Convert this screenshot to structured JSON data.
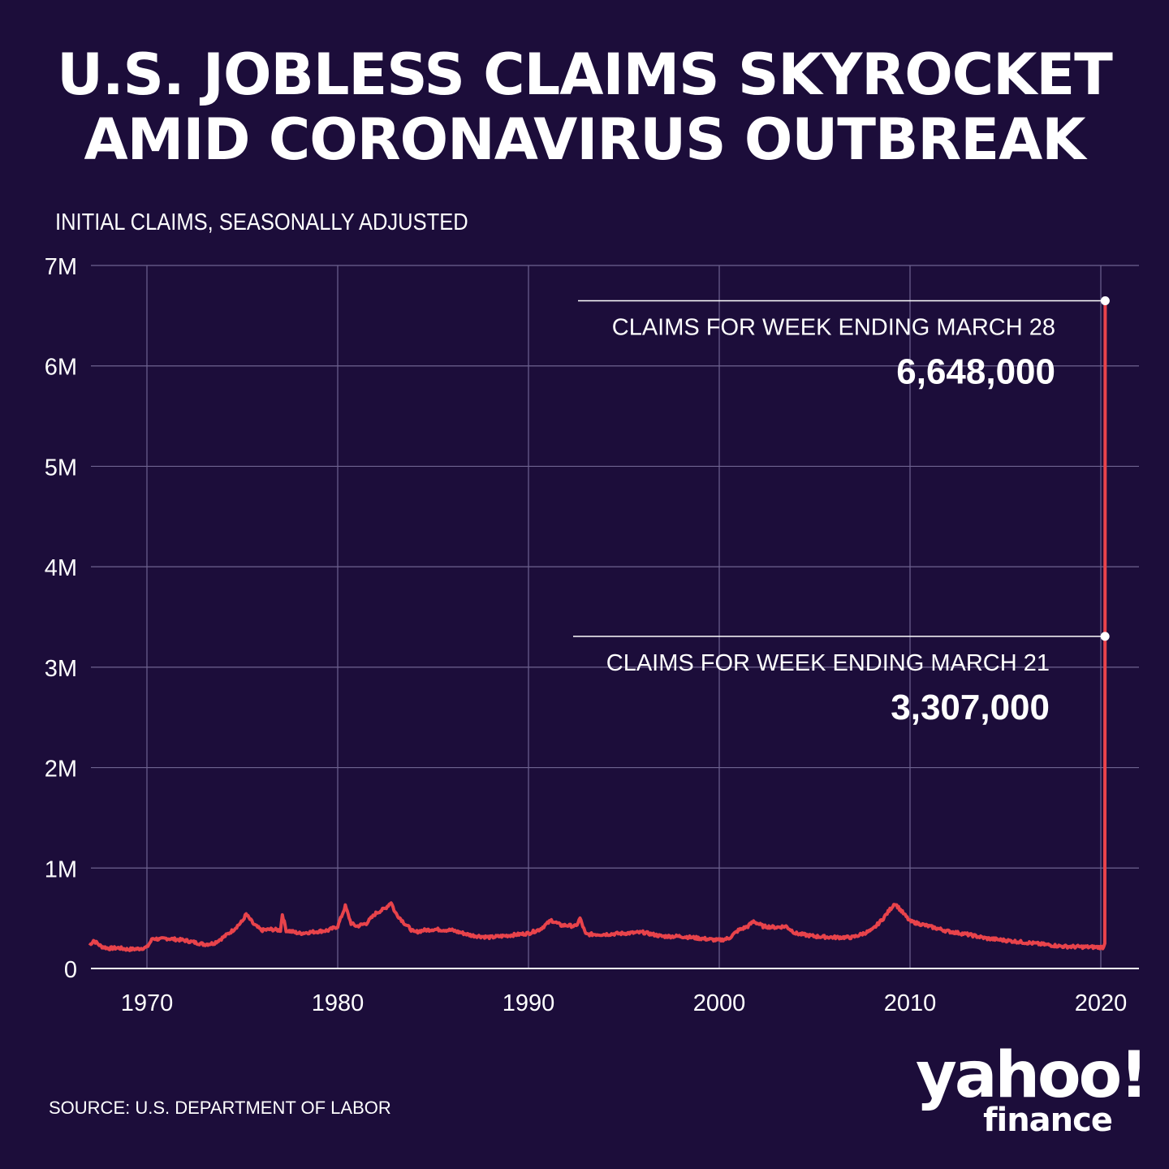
{
  "chart_data": {
    "type": "line",
    "title": "U.S. JOBLESS CLAIMS SKYROCKET AMID CORONAVIRUS OUTBREAK",
    "title_lines": [
      "U.S. JOBLESS CLAIMS SKYROCKET",
      "AMID CORONAVIRUS OUTBREAK"
    ],
    "ylabel": "INITIAL CLAIMS, SEASONALLY ADJUSTED",
    "xlim": [
      1967,
      2021.0
    ],
    "ylim": [
      0,
      7000000
    ],
    "grid": true,
    "y_ticks": [
      {
        "v": 0,
        "label": "0"
      },
      {
        "v": 1000000,
        "label": "1M"
      },
      {
        "v": 2000000,
        "label": "2M"
      },
      {
        "v": 3000000,
        "label": "3M"
      },
      {
        "v": 4000000,
        "label": "4M"
      },
      {
        "v": 5000000,
        "label": "5M"
      },
      {
        "v": 6000000,
        "label": "6M"
      },
      {
        "v": 7000000,
        "label": "7M"
      }
    ],
    "x_ticks": [
      {
        "v": 1970,
        "label": "1970"
      },
      {
        "v": 1980,
        "label": "1980"
      },
      {
        "v": 1990,
        "label": "1990"
      },
      {
        "v": 2000,
        "label": "2000"
      },
      {
        "v": 2010,
        "label": "2010"
      },
      {
        "v": 2020,
        "label": "2020"
      }
    ],
    "series": [
      {
        "name": "Initial claims",
        "color": "#e8434b",
        "x": [
          1967.0,
          1967.2,
          1967.6,
          1968.0,
          1968.5,
          1969.0,
          1969.5,
          1970.0,
          1970.3,
          1970.7,
          1971.0,
          1971.5,
          1972.0,
          1972.5,
          1973.0,
          1973.5,
          1974.0,
          1974.5,
          1975.0,
          1975.2,
          1975.6,
          1976.0,
          1976.5,
          1977.0,
          1977.1,
          1977.3,
          1978.0,
          1978.5,
          1979.0,
          1979.5,
          1980.0,
          1980.4,
          1980.7,
          1981.0,
          1981.5,
          1982.0,
          1982.5,
          1982.8,
          1983.0,
          1983.5,
          1984.0,
          1984.5,
          1985.0,
          1986.0,
          1987.0,
          1988.0,
          1989.0,
          1990.0,
          1990.6,
          1991.2,
          1991.7,
          1992.0,
          1992.5,
          1992.7,
          1993.0,
          1994.0,
          1995.0,
          1996.0,
          1997.0,
          1998.0,
          1999.0,
          2000.0,
          2000.5,
          2001.0,
          2001.5,
          2001.8,
          2002.3,
          2003.0,
          2003.5,
          2004.0,
          2005.0,
          2006.0,
          2007.0,
          2008.0,
          2008.6,
          2009.2,
          2009.6,
          2010.0,
          2011.0,
          2012.0,
          2013.0,
          2014.0,
          2015.0,
          2016.0,
          2017.0,
          2018.0,
          2019.0,
          2020.15,
          2020.21,
          2020.22,
          2020.23
        ],
        "values": [
          230000,
          280000,
          220000,
          200000,
          205000,
          190000,
          195000,
          210000,
          300000,
          290000,
          300000,
          290000,
          280000,
          260000,
          240000,
          250000,
          310000,
          380000,
          470000,
          540000,
          440000,
          380000,
          390000,
          380000,
          540000,
          380000,
          350000,
          360000,
          370000,
          380000,
          420000,
          620000,
          450000,
          420000,
          450000,
          550000,
          600000,
          660000,
          560000,
          450000,
          360000,
          380000,
          390000,
          380000,
          330000,
          310000,
          330000,
          350000,
          390000,
          480000,
          430000,
          430000,
          420000,
          500000,
          340000,
          340000,
          350000,
          360000,
          320000,
          320000,
          300000,
          280000,
          300000,
          380000,
          420000,
          470000,
          420000,
          410000,
          420000,
          350000,
          320000,
          310000,
          310000,
          380000,
          500000,
          650000,
          560000,
          470000,
          420000,
          370000,
          340000,
          300000,
          280000,
          260000,
          240000,
          220000,
          215000,
          211000,
          250000,
          3307000,
          6648000
        ]
      }
    ],
    "annotations": [
      {
        "label": "CLAIMS FOR WEEK ENDING MARCH 28",
        "value_text": "6,648,000",
        "x": 2020.23,
        "y": 6648000
      },
      {
        "label": "CLAIMS FOR WEEK ENDING MARCH 21",
        "value_text": "3,307,000",
        "x": 2020.22,
        "y": 3307000
      }
    ]
  },
  "source": "SOURCE:  U.S. DEPARTMENT OF LABOR",
  "logo": {
    "line1": "yahoo!",
    "line2": "finance"
  }
}
